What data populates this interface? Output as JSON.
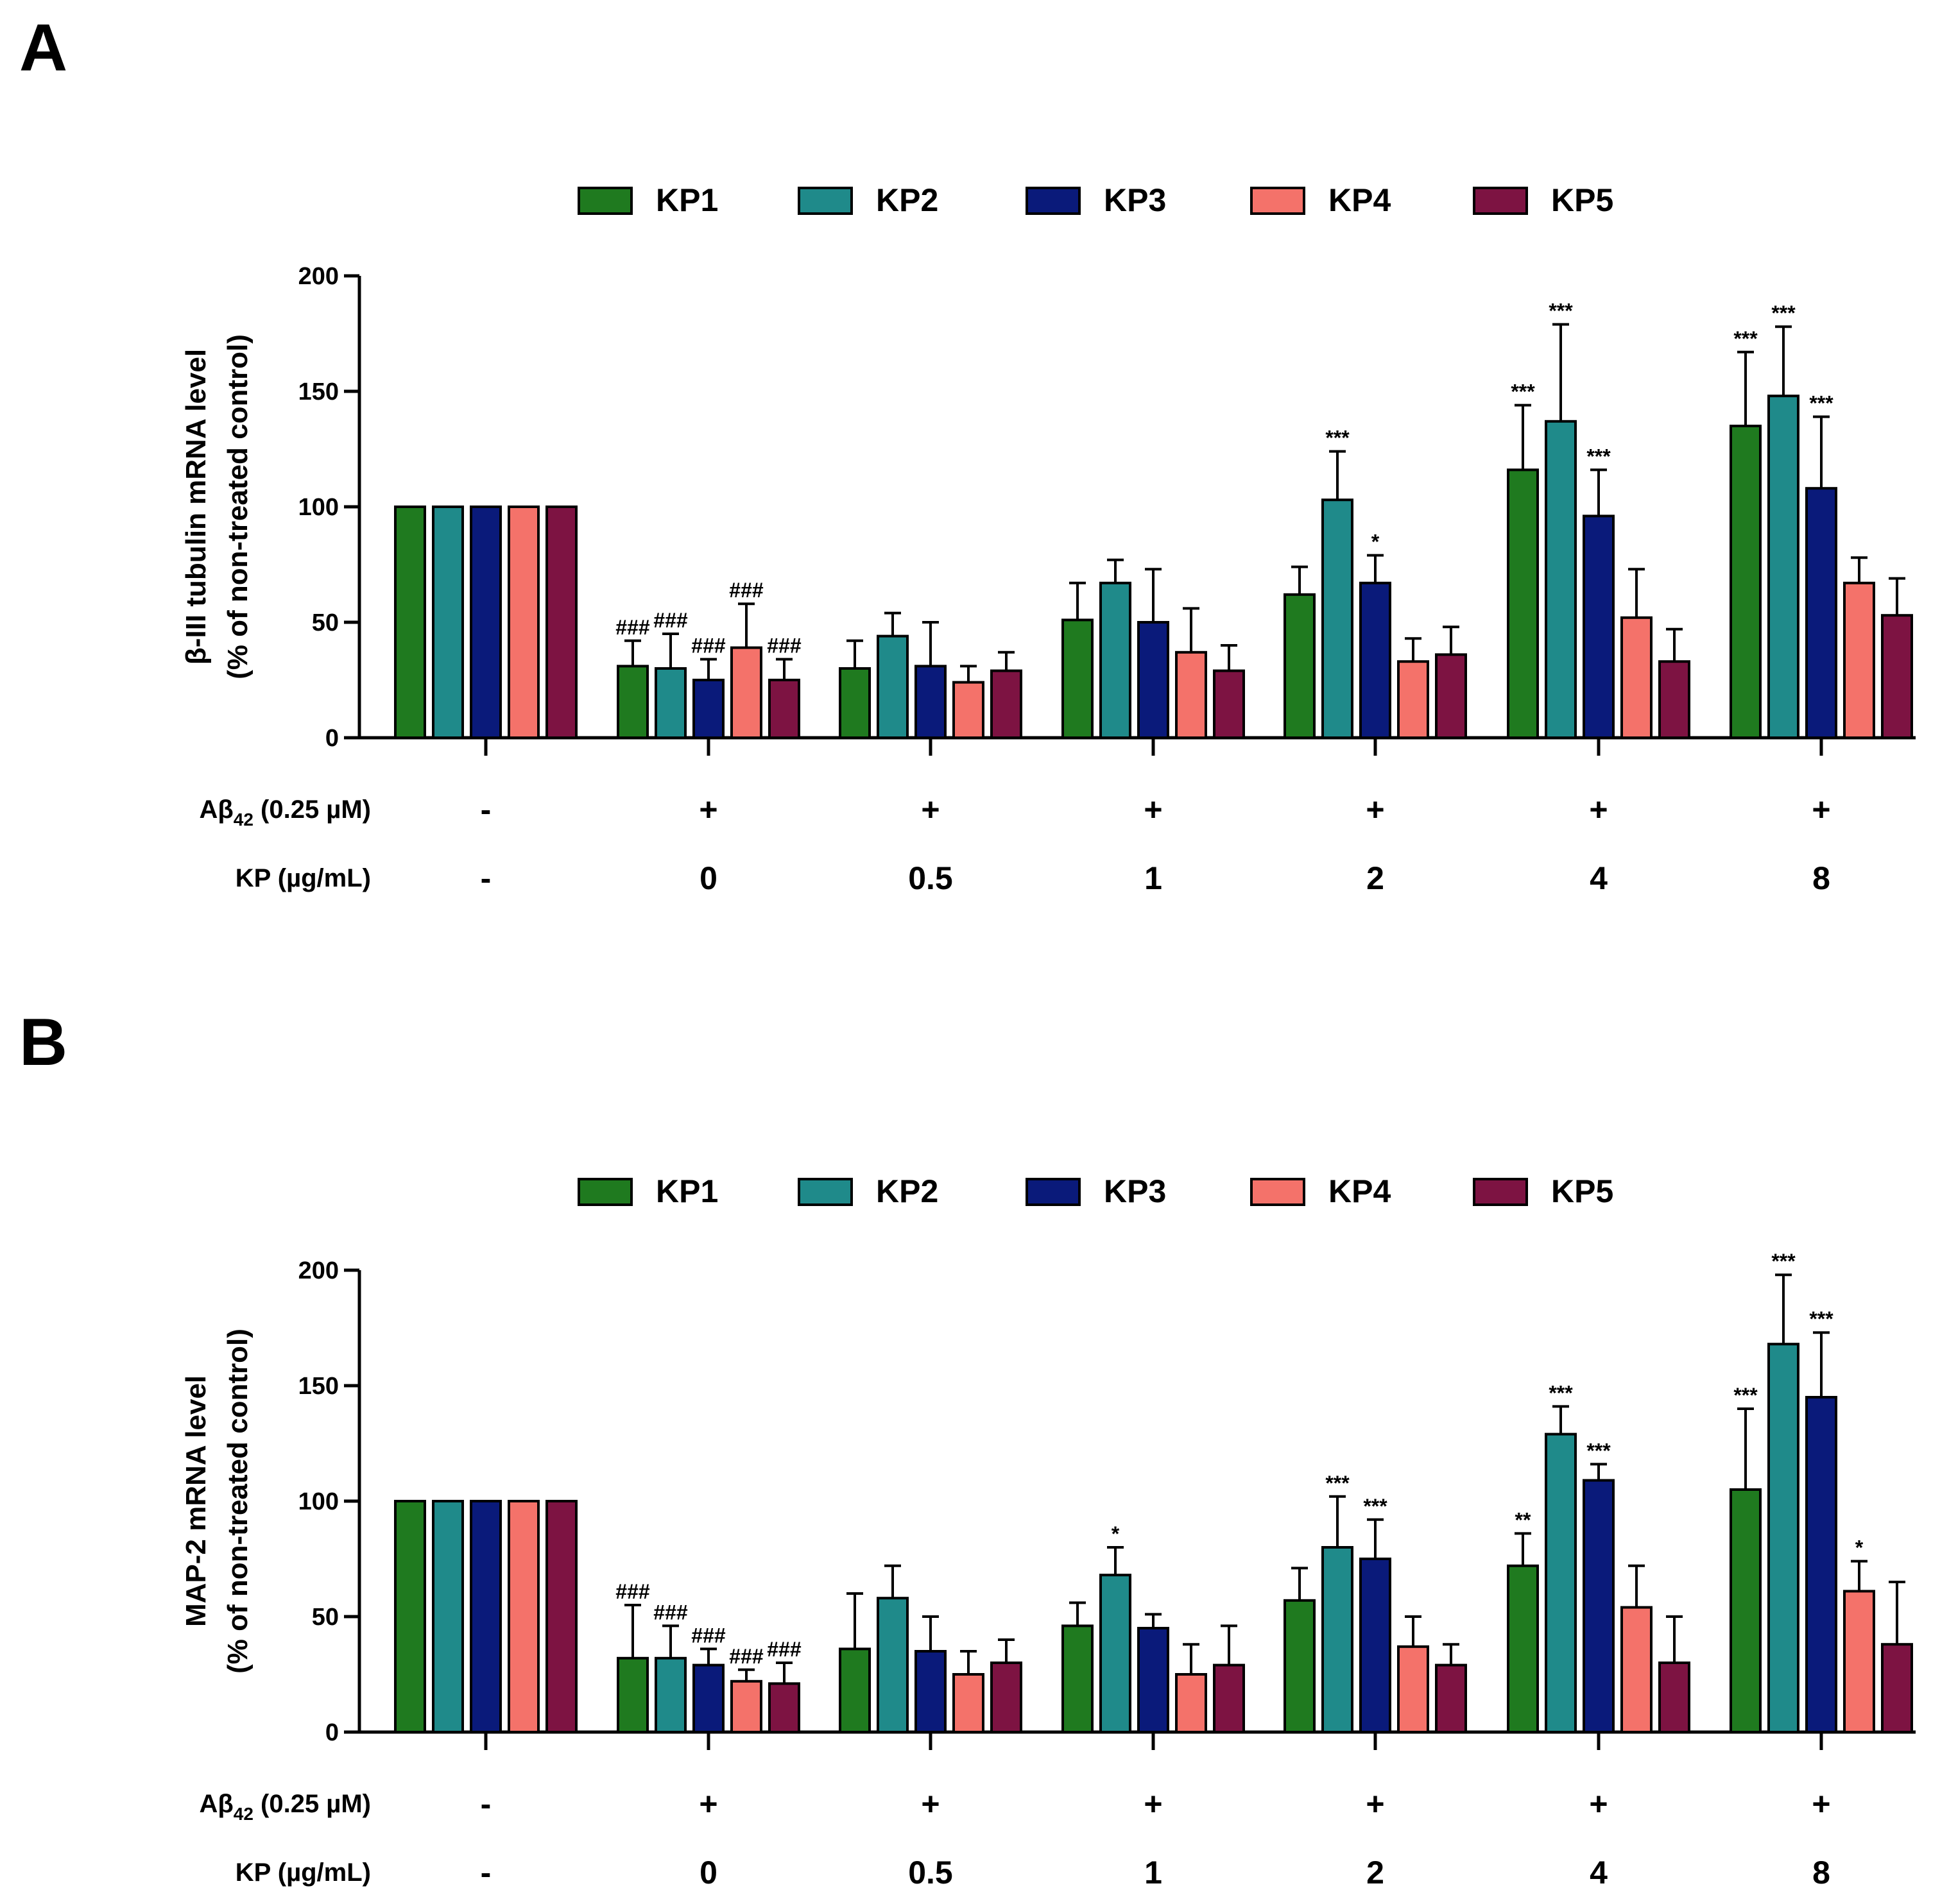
{
  "chart_data": [
    {
      "panel": "A",
      "type": "bar",
      "legend_position": "top-center",
      "series_names": [
        "KP1",
        "KP2",
        "KP3",
        "KP4",
        "KP5"
      ],
      "colors": [
        "#1f7a1f",
        "#1f8a8a",
        "#0a1a7a",
        "#f4726a",
        "#7d1342"
      ],
      "ylabel_line1": "β-III tubulin mRNA level",
      "ylabel_line2": "(% of non-treated control)",
      "ylim": [
        0,
        200
      ],
      "yticks": [
        "0",
        "50",
        "100",
        "150",
        "200"
      ],
      "row1_label_main": "Aβ",
      "row1_label_sub": "42",
      "row1_label_rest": " (0.25 µM)",
      "row2_label": "KP (µg/mL)",
      "abeta_values": [
        "-",
        "+",
        "+",
        "+",
        "+",
        "+",
        "+"
      ],
      "kp_values": [
        "-",
        "0",
        "0.5",
        "1",
        "2",
        "4",
        "8"
      ],
      "values": [
        [
          100,
          100,
          100,
          100,
          100
        ],
        [
          31,
          30,
          25,
          39,
          25
        ],
        [
          30,
          44,
          31,
          24,
          29
        ],
        [
          51,
          67,
          50,
          37,
          29
        ],
        [
          62,
          103,
          67,
          33,
          36
        ],
        [
          116,
          137,
          96,
          52,
          33
        ],
        [
          135,
          148,
          108,
          67,
          53
        ]
      ],
      "errors": [
        [
          0,
          0,
          0,
          0,
          0
        ],
        [
          11,
          15,
          9,
          19,
          9
        ],
        [
          12,
          10,
          19,
          7,
          8
        ],
        [
          16,
          10,
          23,
          19,
          11
        ],
        [
          12,
          21,
          12,
          10,
          12
        ],
        [
          28,
          42,
          20,
          21,
          14
        ],
        [
          32,
          30,
          31,
          11,
          16
        ]
      ],
      "significance": [
        [
          "",
          "",
          "",
          "",
          ""
        ],
        [
          "###",
          "###",
          "###",
          "###",
          "###"
        ],
        [
          "",
          "",
          "",
          "",
          ""
        ],
        [
          "",
          "",
          "",
          "",
          ""
        ],
        [
          "",
          "***",
          "*",
          "",
          ""
        ],
        [
          "***",
          "***",
          "***",
          "",
          ""
        ],
        [
          "***",
          "***",
          "***",
          "",
          ""
        ]
      ]
    },
    {
      "panel": "B",
      "type": "bar",
      "legend_position": "top-center",
      "series_names": [
        "KP1",
        "KP2",
        "KP3",
        "KP4",
        "KP5"
      ],
      "colors": [
        "#1f7a1f",
        "#1f8a8a",
        "#0a1a7a",
        "#f4726a",
        "#7d1342"
      ],
      "ylabel_line1": "MAP-2 mRNA level",
      "ylabel_line2": "(% of non-treated control)",
      "ylim": [
        0,
        200
      ],
      "yticks": [
        "0",
        "50",
        "100",
        "150",
        "200"
      ],
      "row1_label_main": "Aβ",
      "row1_label_sub": "42",
      "row1_label_rest": " (0.25 µM)",
      "row2_label": "KP (µg/mL)",
      "abeta_values": [
        "-",
        "+",
        "+",
        "+",
        "+",
        "+",
        "+"
      ],
      "kp_values": [
        "-",
        "0",
        "0.5",
        "1",
        "2",
        "4",
        "8"
      ],
      "values": [
        [
          100,
          100,
          100,
          100,
          100
        ],
        [
          32,
          32,
          29,
          22,
          21
        ],
        [
          36,
          58,
          35,
          25,
          30
        ],
        [
          46,
          68,
          45,
          25,
          29
        ],
        [
          57,
          80,
          75,
          37,
          29
        ],
        [
          72,
          129,
          109,
          54,
          30
        ],
        [
          105,
          168,
          145,
          61,
          38
        ]
      ],
      "errors": [
        [
          0,
          0,
          0,
          0,
          0
        ],
        [
          23,
          14,
          7,
          5,
          9
        ],
        [
          24,
          14,
          15,
          10,
          10
        ],
        [
          10,
          12,
          6,
          13,
          17
        ],
        [
          14,
          22,
          17,
          13,
          9
        ],
        [
          14,
          12,
          7,
          18,
          20
        ],
        [
          35,
          30,
          28,
          13,
          27
        ]
      ],
      "significance": [
        [
          "",
          "",
          "",
          "",
          ""
        ],
        [
          "###",
          "###",
          "###",
          "###",
          "###"
        ],
        [
          "",
          "",
          "",
          "",
          ""
        ],
        [
          "",
          "*",
          "",
          "",
          ""
        ],
        [
          "",
          "***",
          "***",
          "",
          ""
        ],
        [
          "**",
          "***",
          "***",
          "",
          ""
        ],
        [
          "***",
          "***",
          "***",
          "*",
          ""
        ]
      ]
    }
  ]
}
